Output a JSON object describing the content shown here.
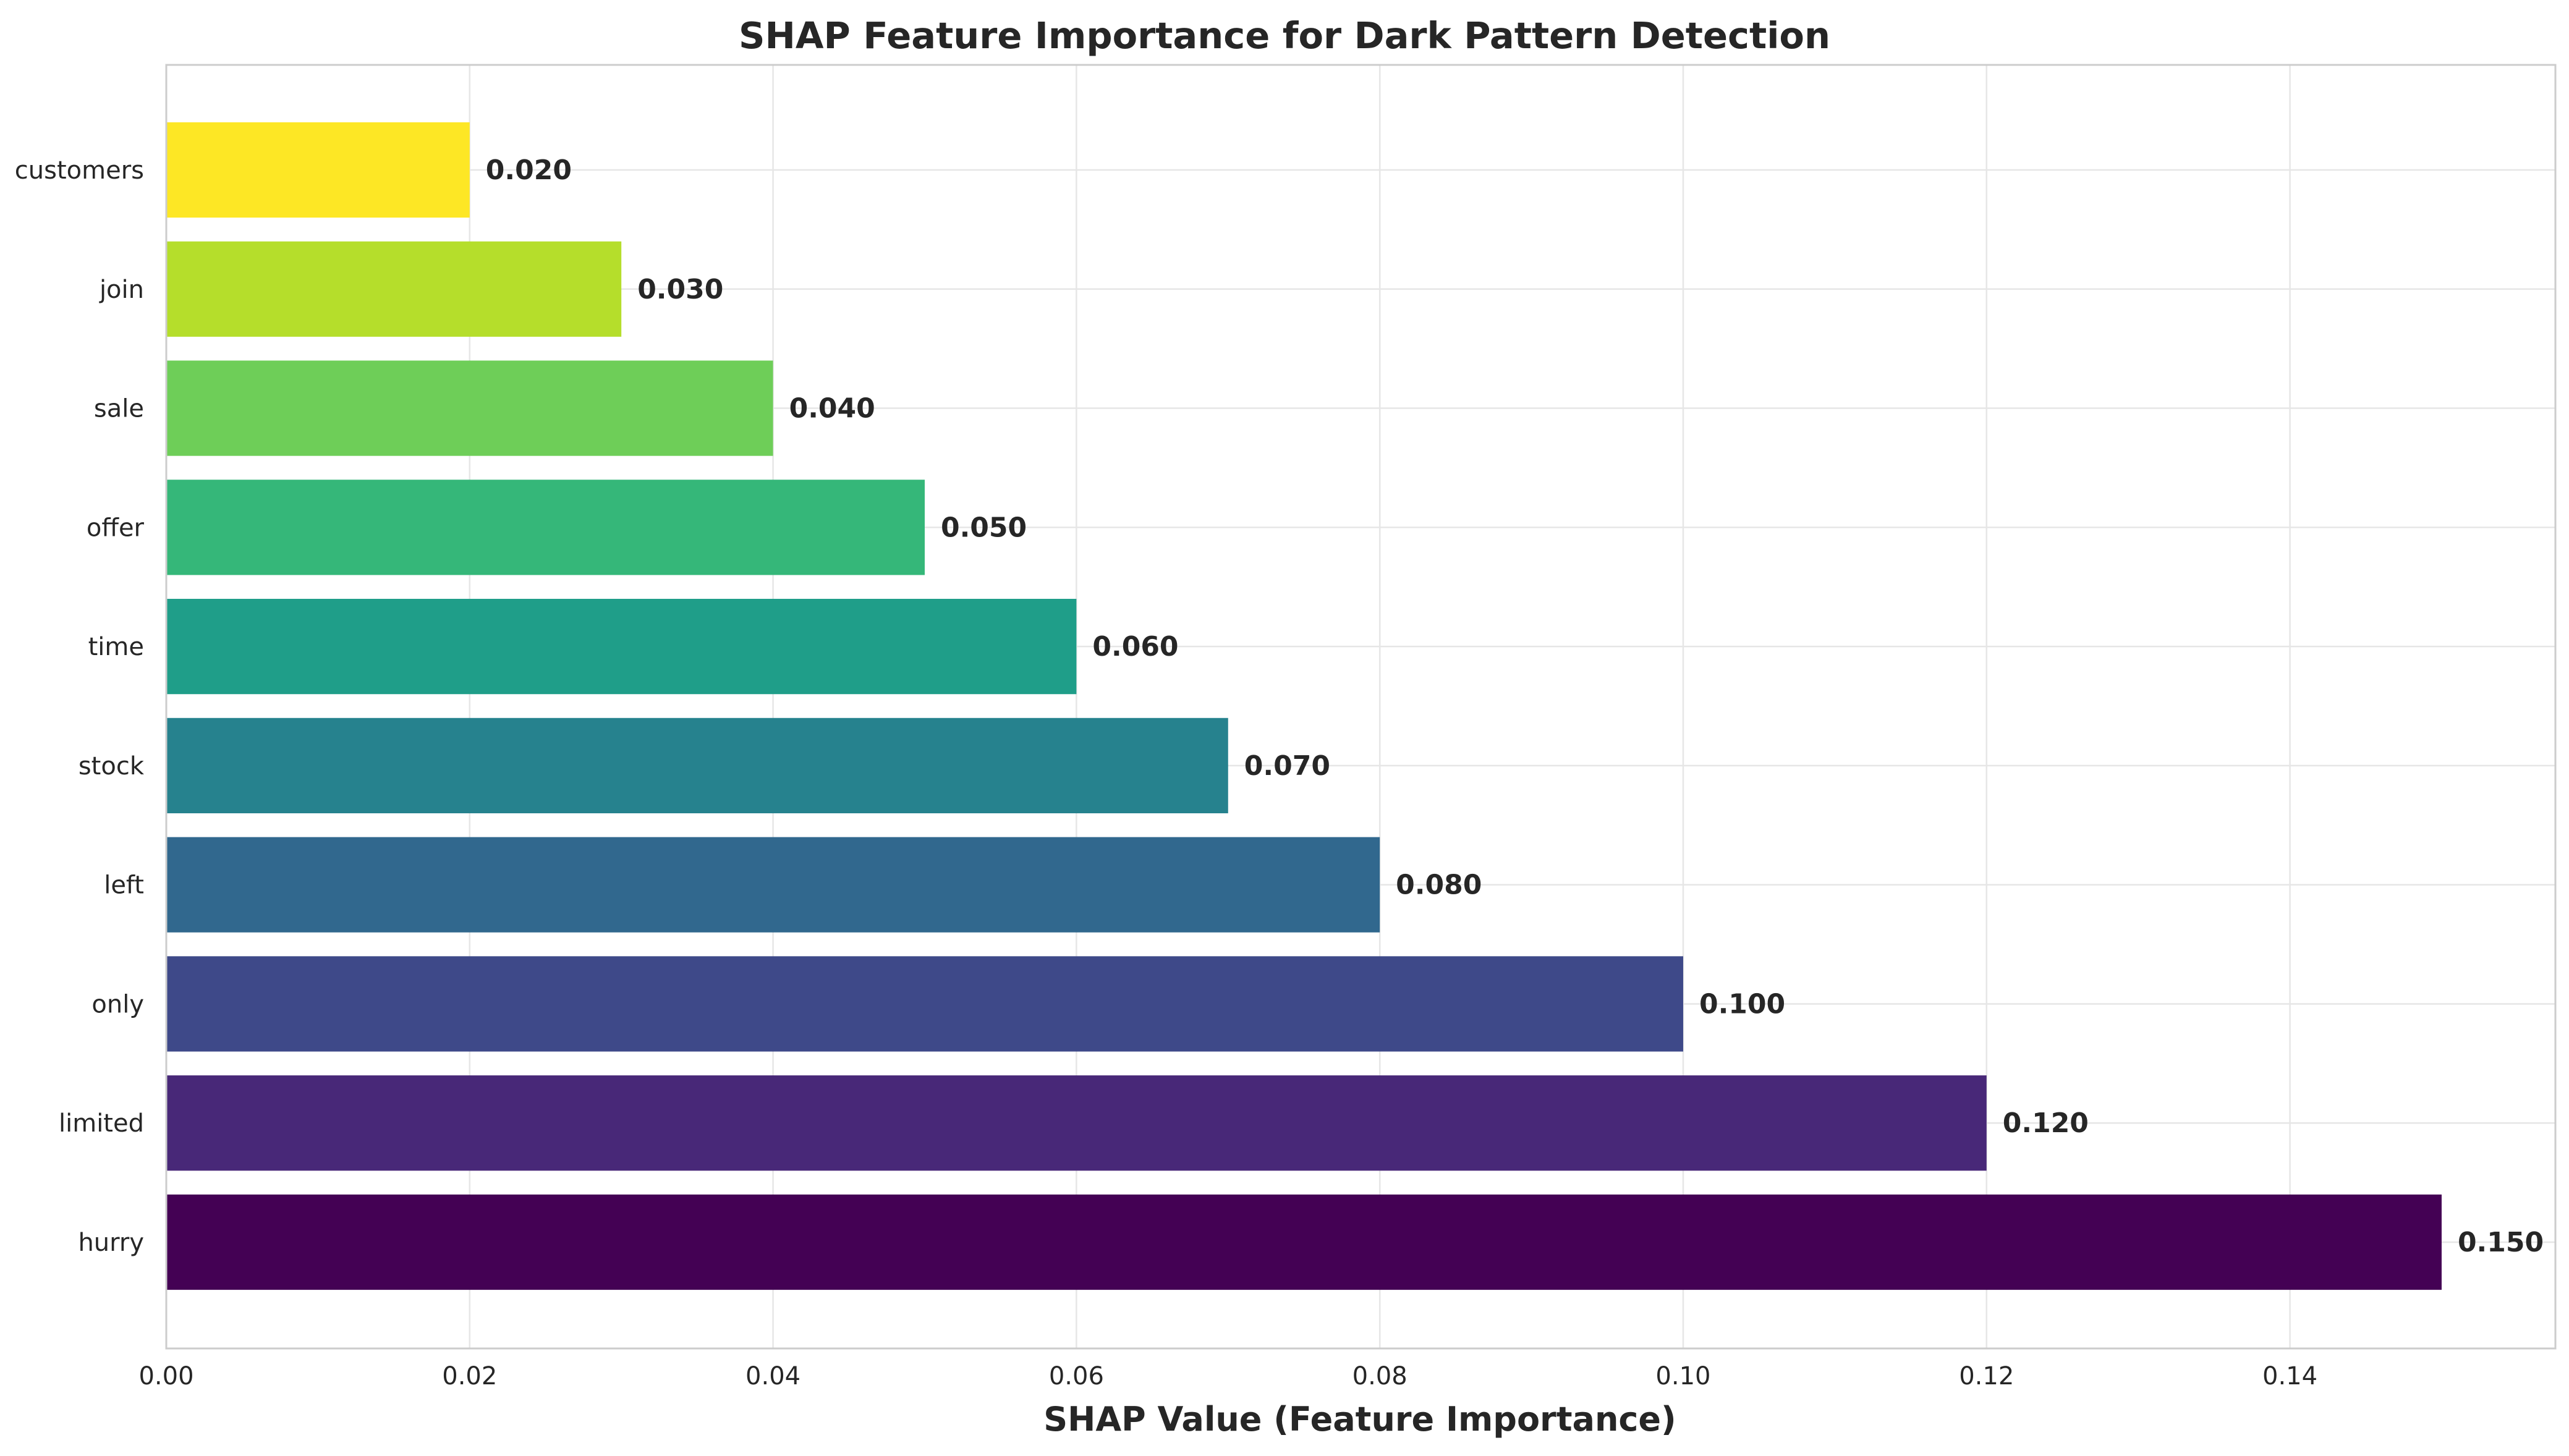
{
  "chart_data": {
    "type": "bar",
    "orientation": "horizontal",
    "title": "SHAP Feature Importance for Dark Pattern Detection",
    "xlabel": "SHAP Value (Feature Importance)",
    "ylabel": "",
    "categories": [
      "hurry",
      "limited",
      "only",
      "left",
      "stock",
      "time",
      "offer",
      "sale",
      "join",
      "customers"
    ],
    "values": [
      0.15,
      0.12,
      0.1,
      0.08,
      0.07,
      0.06,
      0.05,
      0.04,
      0.03,
      0.02
    ],
    "value_labels": [
      "0.150",
      "0.120",
      "0.100",
      "0.080",
      "0.070",
      "0.060",
      "0.050",
      "0.040",
      "0.030",
      "0.020"
    ],
    "colors": [
      "#440154",
      "#482878",
      "#3e4989",
      "#31688e",
      "#26828e",
      "#1f9e89",
      "#35b779",
      "#6ece58",
      "#b5de2b",
      "#fde725"
    ],
    "xlim": [
      0,
      0.1575
    ],
    "xticks": [
      0.0,
      0.02,
      0.04,
      0.06,
      0.08,
      0.1,
      0.12,
      0.14
    ],
    "xtick_labels": [
      "0.00",
      "0.02",
      "0.04",
      "0.06",
      "0.08",
      "0.10",
      "0.12",
      "0.14"
    ],
    "grid": true,
    "legend": "none"
  }
}
